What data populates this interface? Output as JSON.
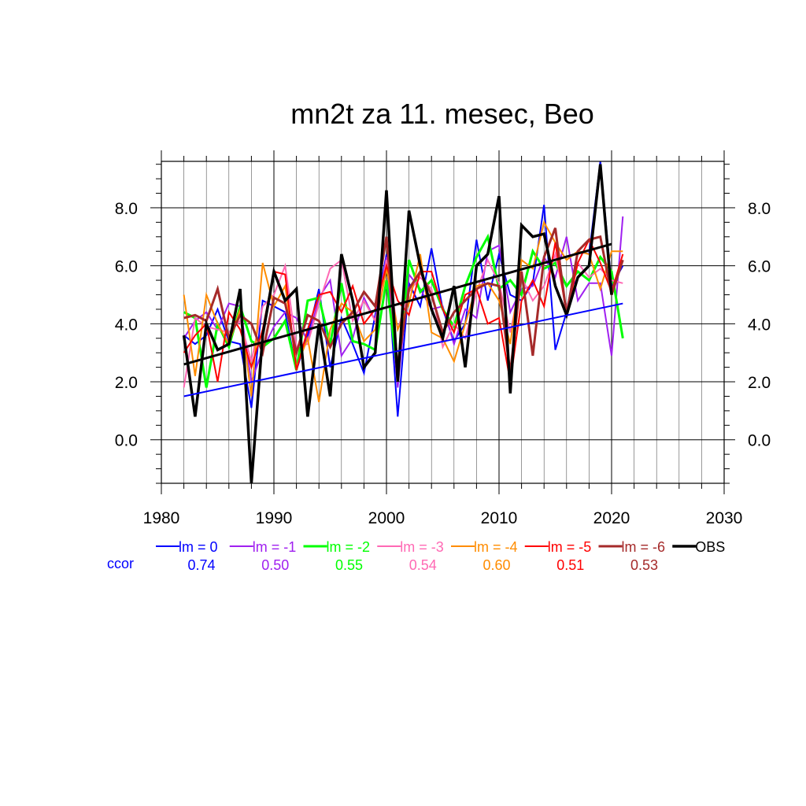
{
  "chart_data": {
    "type": "line",
    "title": "mn2t za 11. mesec, Beo",
    "xlabel": "",
    "ylabel": "",
    "xlim": [
      1980,
      2030
    ],
    "ylim": [
      -1.5,
      9.6
    ],
    "x_ticks": [
      "1980",
      "1990",
      "2000",
      "2010",
      "2020",
      "2030"
    ],
    "x_tick_values": [
      1980,
      1990,
      2000,
      2010,
      2020,
      2030
    ],
    "y_ticks": [
      "0.0",
      "2.0",
      "4.0",
      "6.0",
      "8.0"
    ],
    "y_tick_values": [
      0,
      2,
      4,
      6,
      8
    ],
    "grid": true,
    "x": [
      1982,
      1983,
      1984,
      1985,
      1986,
      1987,
      1988,
      1989,
      1990,
      1991,
      1992,
      1993,
      1994,
      1995,
      1996,
      1997,
      1998,
      1999,
      2000,
      2001,
      2002,
      2003,
      2004,
      2005,
      2006,
      2007,
      2008,
      2009,
      2010,
      2011,
      2012,
      2013,
      2014,
      2015,
      2016,
      2017,
      2018,
      2019,
      2020,
      2021
    ],
    "series": [
      {
        "name": "lm = 0",
        "color": "#0000ff",
        "width": 2,
        "ccor": "0.74",
        "values": [
          3.6,
          3.3,
          3.6,
          4.5,
          3.4,
          3.3,
          1.1,
          4.8,
          4.6,
          4.4,
          2.4,
          3.6,
          5.2,
          2.5,
          4.2,
          3.3,
          2.3,
          4.3,
          6.4,
          0.8,
          5.4,
          4.6,
          6.6,
          4.5,
          3.4,
          4.0,
          6.9,
          4.8,
          6.4,
          5.0,
          4.8,
          5.4,
          8.1,
          3.1,
          4.4,
          6.5,
          6.4,
          9.6,
          5.3,
          6.0
        ]
      },
      {
        "name": "lm = -1",
        "color": "#a020f0",
        "width": 2,
        "ccor": "0.50",
        "values": [
          3.5,
          4.1,
          4.4,
          3.8,
          4.7,
          4.6,
          2.0,
          3.1,
          3.9,
          4.4,
          4.2,
          3.4,
          4.9,
          5.5,
          2.9,
          3.5,
          4.9,
          4.1,
          6.3,
          1.8,
          5.7,
          5.2,
          4.5,
          4.6,
          3.3,
          4.5,
          4.2,
          6.5,
          6.7,
          4.4,
          5.2,
          5.3,
          6.3,
          5.6,
          7.0,
          4.8,
          5.4,
          5.4,
          2.9,
          7.7
        ]
      },
      {
        "name": "lm = -2",
        "color": "#00ff00",
        "width": 3,
        "ccor": "0.55",
        "values": [
          4.4,
          4.2,
          1.8,
          4.0,
          3.2,
          4.6,
          3.4,
          3.2,
          3.5,
          4.1,
          2.4,
          4.8,
          4.9,
          3.3,
          5.4,
          3.4,
          3.3,
          3.1,
          5.5,
          2.3,
          6.2,
          5.1,
          5.5,
          4.5,
          3.9,
          5.3,
          6.3,
          7.0,
          5.2,
          5.5,
          5.0,
          6.5,
          5.9,
          6.1,
          5.3,
          5.8,
          5.5,
          6.3,
          5.8,
          3.5
        ]
      },
      {
        "name": "lm = -3",
        "color": "#ff69b4",
        "width": 2,
        "ccor": "0.54",
        "values": [
          1.8,
          4.2,
          3.9,
          3.8,
          3.7,
          4.1,
          2.7,
          4.6,
          5.0,
          6.0,
          3.2,
          3.3,
          4.7,
          5.9,
          6.2,
          4.1,
          4.8,
          4.1,
          6.2,
          3.8,
          5.1,
          5.6,
          5.2,
          3.2,
          4.0,
          3.5,
          5.1,
          6.2,
          5.4,
          3.7,
          5.6,
          4.8,
          5.3,
          6.4,
          4.5,
          6.1,
          5.6,
          5.9,
          5.5,
          5.4
        ]
      },
      {
        "name": "lm = -4",
        "color": "#ff8c00",
        "width": 2,
        "ccor": "0.60",
        "values": [
          5.0,
          2.2,
          5.0,
          4.0,
          3.3,
          4.5,
          1.5,
          6.1,
          4.6,
          5.3,
          2.5,
          3.5,
          1.3,
          3.8,
          4.7,
          4.4,
          3.4,
          3.8,
          5.9,
          3.8,
          4.7,
          6.4,
          3.7,
          3.5,
          2.7,
          4.0,
          5.3,
          5.4,
          4.8,
          3.3,
          6.2,
          5.9,
          7.5,
          6.8,
          6.2,
          6.5,
          6.4,
          5.2,
          6.5,
          6.5
        ]
      },
      {
        "name": "lm = -5",
        "color": "#ff0000",
        "width": 2,
        "ccor": "0.51",
        "values": [
          3.0,
          3.6,
          4.0,
          2.0,
          4.4,
          3.8,
          2.5,
          3.8,
          5.8,
          5.7,
          2.4,
          3.8,
          5.0,
          5.1,
          4.4,
          5.3,
          4.0,
          4.5,
          6.0,
          4.8,
          4.3,
          5.8,
          5.8,
          4.5,
          3.7,
          5.0,
          5.2,
          4.0,
          4.2,
          2.0,
          4.8,
          5.5,
          4.6,
          6.8,
          4.3,
          6.1,
          6.9,
          6.1,
          5.1,
          6.4
        ]
      },
      {
        "name": "lm = -6",
        "color": "#a52a2a",
        "width": 3,
        "ccor": "0.53",
        "values": [
          4.2,
          4.3,
          4.1,
          5.2,
          3.5,
          4.3,
          4.0,
          3.0,
          4.9,
          4.7,
          3.0,
          4.3,
          4.1,
          3.2,
          4.0,
          4.4,
          5.1,
          4.6,
          7.0,
          2.5,
          5.2,
          5.8,
          5.0,
          3.7,
          4.4,
          4.8,
          5.2,
          5.4,
          5.3,
          2.3,
          5.8,
          2.9,
          6.3,
          7.3,
          4.3,
          6.5,
          6.9,
          7.0,
          5.0,
          6.2
        ]
      },
      {
        "name": "OBS",
        "color": "#000000",
        "width": 3.5,
        "values": [
          3.6,
          0.8,
          4.0,
          3.1,
          3.3,
          5.2,
          -1.5,
          3.6,
          5.8,
          4.8,
          5.2,
          0.8,
          4.0,
          1.5,
          6.4,
          4.8,
          2.5,
          3.0,
          8.6,
          2.0,
          7.9,
          6.0,
          4.5,
          3.5,
          5.3,
          2.5,
          6.0,
          6.4,
          8.4,
          1.6,
          7.4,
          7.0,
          7.1,
          5.3,
          4.3,
          5.6,
          6.0,
          9.5,
          5.0,
          null
        ]
      }
    ],
    "trend_lines": [
      {
        "name": "lm = 0 trend",
        "color": "#0000ff",
        "width": 2,
        "x": [
          1982,
          2021
        ],
        "y": [
          1.5,
          4.7
        ]
      },
      {
        "name": "OBS trend",
        "color": "#000000",
        "width": 3,
        "x": [
          1982,
          2020
        ],
        "y": [
          2.6,
          6.75
        ]
      }
    ],
    "ccor_label": "ccor",
    "ccor_label_color": "#0000ff"
  }
}
